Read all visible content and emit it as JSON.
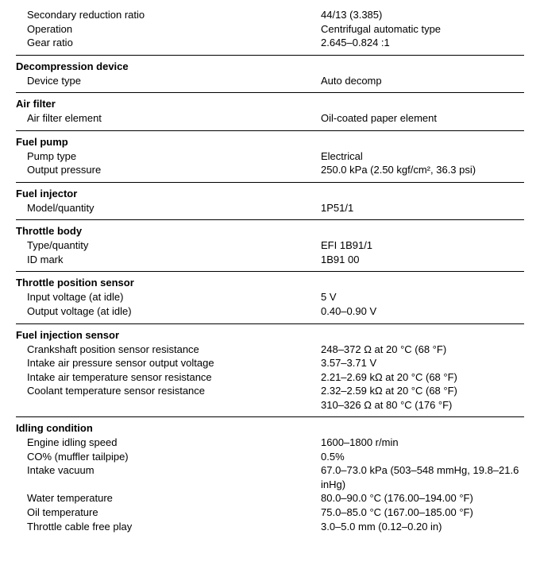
{
  "sections": [
    {
      "title": null,
      "rows": [
        {
          "label": "Secondary reduction ratio",
          "value": "44/13 (3.385)"
        },
        {
          "label": "Operation",
          "value": "Centrifugal automatic type"
        },
        {
          "label": "Gear ratio",
          "value": "2.645–0.824 :1"
        }
      ]
    },
    {
      "title": "Decompression device",
      "rows": [
        {
          "label": "Device type",
          "value": "Auto decomp"
        }
      ]
    },
    {
      "title": "Air filter",
      "rows": [
        {
          "label": "Air filter element",
          "value": "Oil-coated paper element"
        }
      ]
    },
    {
      "title": "Fuel pump",
      "rows": [
        {
          "label": "Pump type",
          "value": "Electrical"
        },
        {
          "label": "Output pressure",
          "value": "250.0 kPa (2.50 kgf/cm², 36.3 psi)"
        }
      ]
    },
    {
      "title": "Fuel injector",
      "rows": [
        {
          "label": "Model/quantity",
          "value": "1P51/1"
        }
      ]
    },
    {
      "title": "Throttle body",
      "rows": [
        {
          "label": "Type/quantity",
          "value": "EFI 1B91/1"
        },
        {
          "label": "ID mark",
          "value": "1B91 00"
        }
      ]
    },
    {
      "title": "Throttle position sensor",
      "rows": [
        {
          "label": "Input voltage (at idle)",
          "value": "5 V"
        },
        {
          "label": "Output voltage (at idle)",
          "value": "0.40–0.90 V"
        }
      ]
    },
    {
      "title": "Fuel injection sensor",
      "rows": [
        {
          "label": "Crankshaft position sensor resistance",
          "value": "248–372 Ω at 20 °C (68 °F)"
        },
        {
          "label": "Intake air pressure sensor output voltage",
          "value": "3.57–3.71 V"
        },
        {
          "label": "Intake air temperature sensor resistance",
          "value": "2.21–2.69 kΩ at 20 °C (68 °F)"
        },
        {
          "label": "Coolant temperature sensor resistance",
          "value": "2.32–2.59 kΩ at 20 °C (68 °F)"
        },
        {
          "label": "",
          "value": "310–326 Ω at 80 °C (176 °F)"
        }
      ]
    },
    {
      "title": "Idling condition",
      "rows": [
        {
          "label": "Engine idling speed",
          "value": "1600–1800 r/min"
        },
        {
          "label": "CO% (muffler tailpipe)",
          "value": "0.5%"
        },
        {
          "label": "Intake vacuum",
          "value": "67.0–73.0 kPa (503–548 mmHg, 19.8–21.6 inHg)"
        },
        {
          "label": "Water temperature",
          "value": "80.0–90.0 °C (176.00–194.00 °F)"
        },
        {
          "label": "Oil temperature",
          "value": "75.0–85.0 °C (167.00–185.00 °F)"
        },
        {
          "label": "Throttle cable free play",
          "value": "3.0–5.0 mm (0.12–0.20 in)"
        }
      ]
    }
  ]
}
